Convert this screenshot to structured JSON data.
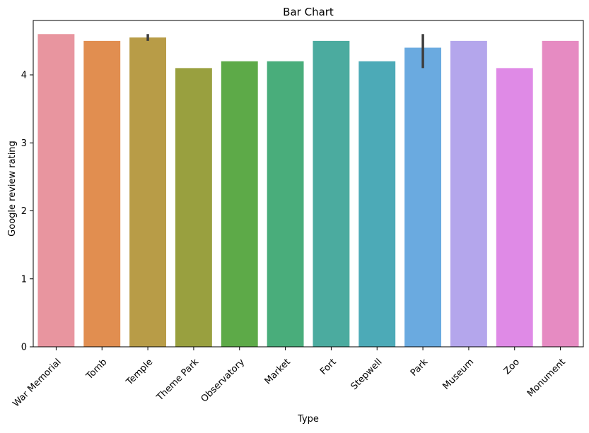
{
  "chart_data": {
    "type": "bar",
    "title": "Bar Chart",
    "xlabel": "Type",
    "ylabel": "Google review rating",
    "ylim": [
      0,
      4.8
    ],
    "yticks": [
      0,
      1,
      2,
      3,
      4
    ],
    "grid": false,
    "categories": [
      "War Memorial",
      "Tomb",
      "Temple",
      "Theme Park",
      "Observatory",
      "Market",
      "Fort",
      "Stepwell",
      "Park",
      "Museum",
      "Zoo",
      "Monument"
    ],
    "values": [
      4.6,
      4.5,
      4.55,
      4.1,
      4.2,
      4.2,
      4.5,
      4.2,
      4.4,
      4.5,
      4.1,
      4.5
    ],
    "error_bars": [
      null,
      null,
      [
        4.5,
        4.6
      ],
      null,
      null,
      null,
      null,
      null,
      [
        4.1,
        4.6
      ],
      null,
      null,
      null
    ],
    "colors": [
      "#e8959f",
      "#e18e50",
      "#b89c47",
      "#99a03f",
      "#5daa48",
      "#49ad7b",
      "#4bab9f",
      "#4caab7",
      "#6aaae0",
      "#b4a6ec",
      "#df8ae6",
      "#e68bc2"
    ]
  }
}
